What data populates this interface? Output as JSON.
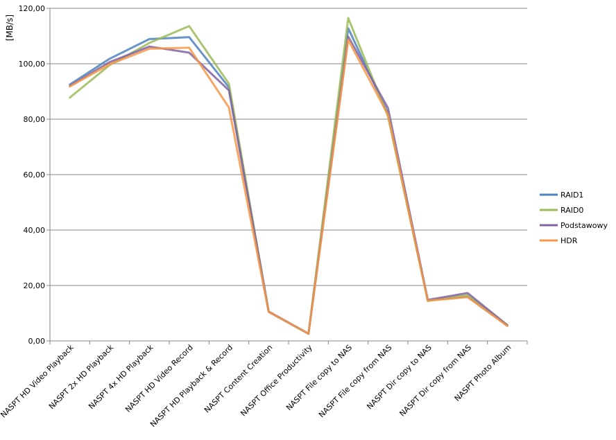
{
  "chart_data": {
    "type": "line",
    "title": "",
    "xlabel": "",
    "ylabel": "[MB/s]",
    "ylim": [
      0,
      120
    ],
    "ytick_step": 20,
    "ytick_labels": [
      "0,00",
      "20,00",
      "40,00",
      "60,00",
      "80,00",
      "100,00",
      "120,00"
    ],
    "grid": true,
    "legend_position": "right",
    "categories": [
      "NASPT HD Video Playback",
      "NASPT 2x HD Playback",
      "NASPT 4x HD Playback",
      "NASPT HD Video Record",
      "NASPT HD Playback & Record",
      "NASPT Content Creation",
      "NASPT Office Productivity",
      "NASPT File copy to NAS",
      "NASPT File copy from NAS",
      "NASPT Dir copy to NAS",
      "NASPT Dir copy from NAS",
      "NASPT Photo Album"
    ],
    "series": [
      {
        "name": "RAID1",
        "color": "#4f81bd",
        "values": [
          92.5,
          101.8,
          108.9,
          109.6,
          91.5,
          10.5,
          2.6,
          112.8,
          82.0,
          14.6,
          16.0,
          5.6
        ]
      },
      {
        "name": "RAID0",
        "color": "#9bbb59",
        "values": [
          87.8,
          99.5,
          107.5,
          113.6,
          92.8,
          10.5,
          2.6,
          116.5,
          81.0,
          14.4,
          16.6,
          5.6
        ]
      },
      {
        "name": "Podstawowy",
        "color": "#8064a2",
        "values": [
          92.0,
          100.6,
          106.2,
          104.0,
          90.4,
          10.6,
          2.6,
          109.8,
          84.0,
          14.8,
          17.3,
          5.7
        ]
      },
      {
        "name": "HDR",
        "color": "#f79646",
        "values": [
          91.8,
          99.8,
          105.4,
          105.8,
          84.2,
          10.5,
          2.6,
          108.6,
          81.6,
          14.5,
          15.8,
          5.4
        ]
      }
    ]
  }
}
